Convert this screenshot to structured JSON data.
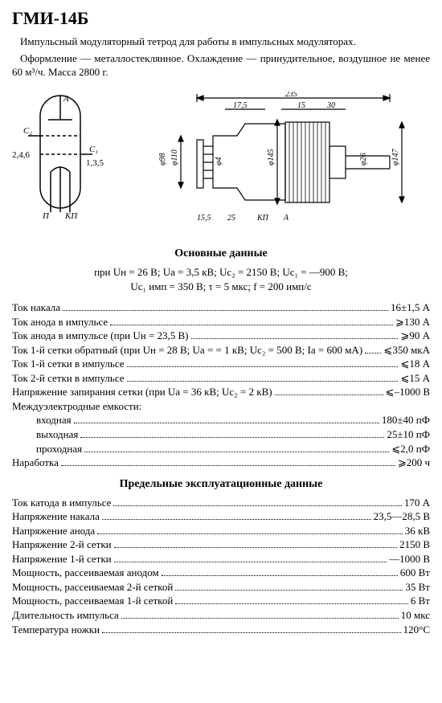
{
  "title": "ГМИ-14Б",
  "description1": "Импульсный модуляторный тетрод для работы в импульсных модуляторах.",
  "description2": "Оформление — металлостеклянное. Охлаждение — принудительное, воздушное не менее 60 м³/ч. Масса 2800 г.",
  "schematic_labels": {
    "a": "А",
    "c2": "С₂",
    "c1": "С₁",
    "pins_left": "2,4,6",
    "pins_right": "1,3,5",
    "p": "П",
    "kp": "КП"
  },
  "mechanical_dims": {
    "total_length": "235",
    "d1": "17,5",
    "d2": "15",
    "d3": "30",
    "dia98": "φ98",
    "dia110": "φ110",
    "dia4": "φ4",
    "dia145": "φ145",
    "dia26": "φ26",
    "dia141": "φ147",
    "d_155": "15,5",
    "d_25": "25",
    "kp": "КП",
    "a": "А"
  },
  "section_main": "Основные данные",
  "conditions_line1": "при Uн = 26 В;  Uа = 3,5 кВ;  Uс₂ = 2150 В;  Uс₁ = —900 В;",
  "conditions_line2": "Uс₁ имп = 350 В;  τ = 5 мкс;  f = 200 имп/с",
  "main_data": [
    {
      "label": "Ток накала",
      "value": "16±1,5 А"
    },
    {
      "label": "Ток анода в импульсе",
      "value": "⩾130 А"
    },
    {
      "label": "Ток анода в импульсе (при Uн = 23,5 В)",
      "value": "⩾90 А"
    },
    {
      "label": "Ток 1-й сетки обратный  (при Uн = 28 В;  Uа = = 1 кВ;  Uс₂ = 500 В;  Iа = 600 мА)",
      "value": "⩽350 мкА"
    },
    {
      "label": "Ток 1-й сетки в импульсе",
      "value": "⩽18 А"
    },
    {
      "label": "Ток 2-й сетки в импульсе",
      "value": "⩽15 А"
    },
    {
      "label": "Напряжение запирания сетки (при Uа = 36 кВ; Uс₂ = 2 кВ)",
      "value": "⩽–1000 В"
    }
  ],
  "inter_label": "Междуэлектродные емкости:",
  "inter_data": [
    {
      "label": "входная",
      "value": "180±40 пФ",
      "indent": true
    },
    {
      "label": "выходная",
      "value": "25±10 пФ",
      "indent": true
    },
    {
      "label": "проходная",
      "value": "⩽2,0 пФ",
      "indent": true
    }
  ],
  "narabotka": {
    "label": "Наработка",
    "value": "⩾200 ч"
  },
  "section_limits": "Предельные эксплуатационные данные",
  "limits_data": [
    {
      "label": "Ток катода в импульсе",
      "value": "170 А"
    },
    {
      "label": "Напряжение накала",
      "value": "23,5—28,5 В"
    },
    {
      "label": "Напряжение анода",
      "value": "36 кВ"
    },
    {
      "label": "Напряжение 2-й сетки",
      "value": "2150 В"
    },
    {
      "label": "Напряжение 1-й сетки",
      "value": "—1000 В"
    },
    {
      "label": "Мощность, рассеиваемая анодом",
      "value": "600 Вт"
    },
    {
      "label": "Мощность, рассеиваемая 2-й сеткой",
      "value": "35 Вт"
    },
    {
      "label": "Мощность, рассеиваемая 1-й сеткой",
      "value": "6 Вт"
    },
    {
      "label": "Длительность импульса",
      "value": "10 мкс"
    },
    {
      "label": "Температура ножки",
      "value": "120°С"
    }
  ]
}
